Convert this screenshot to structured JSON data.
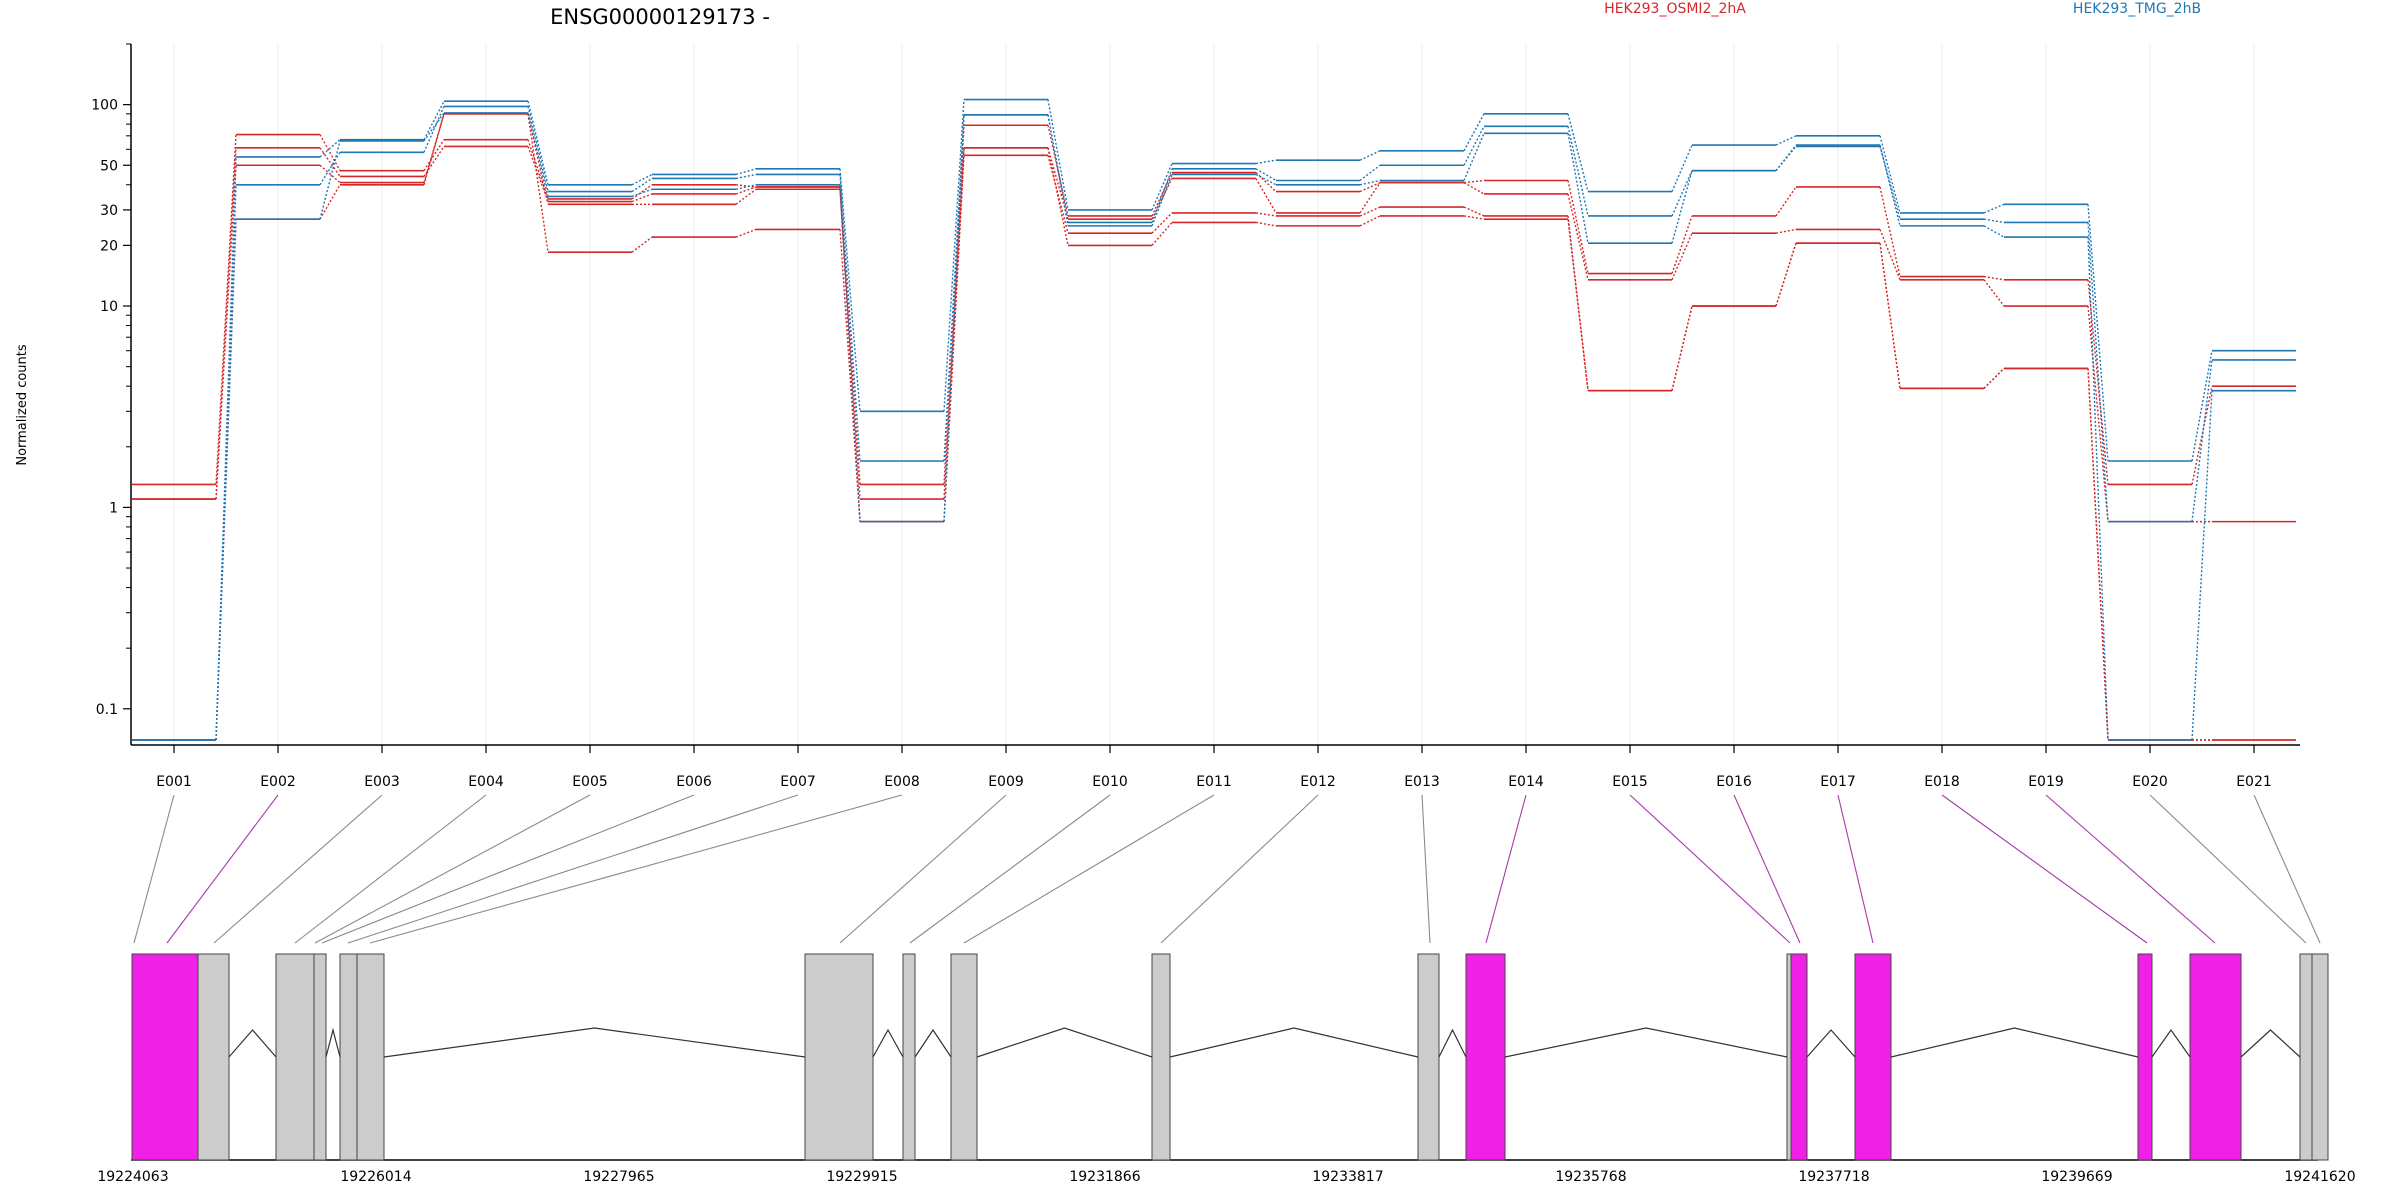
{
  "chart_data": {
    "type": "line",
    "title": "ENSG00000129173 -",
    "ylabel": "Normalized counts",
    "y_scale": "log",
    "ylim": [
      0.07,
      200
    ],
    "y_ticks": [
      0.1,
      1,
      10,
      20,
      30,
      50,
      100
    ],
    "y_tick_labels": [
      "0.1",
      "1",
      "10",
      "20",
      "30",
      "50",
      "100"
    ],
    "grid": "vertical",
    "categories": [
      "E001",
      "E002",
      "E003",
      "E004",
      "E005",
      "E006",
      "E007",
      "E008",
      "E009",
      "E010",
      "E011",
      "E012",
      "E013",
      "E014",
      "E015",
      "E016",
      "E017",
      "E018",
      "E019",
      "E020",
      "E021"
    ],
    "legend": [
      {
        "name": "HEK293_OSMI2_2hA",
        "color": "#d62728"
      },
      {
        "name": "HEK293_TMG_2hB",
        "color": "#1f77b4"
      }
    ],
    "series": [
      {
        "group": "HEK293_OSMI2_2hA",
        "color": "#d62728",
        "values": [
          1.3,
          71,
          47,
          67,
          34,
          40,
          39,
          1.3,
          79,
          28,
          46,
          37,
          41,
          42,
          14.5,
          28,
          39,
          14,
          13.5,
          1.3,
          4
        ]
      },
      {
        "group": "HEK293_OSMI2_2hA",
        "color": "#d62728",
        "values": [
          1.1,
          61,
          44,
          62,
          33,
          36,
          39,
          1.1,
          61,
          27,
          43,
          29,
          41,
          36,
          13.5,
          23,
          24,
          13.5,
          10,
          0.85,
          0.85
        ]
      },
      {
        "group": "HEK293_OSMI2_2hA",
        "color": "#d62728",
        "values": [
          1.1,
          50,
          41,
          90,
          32,
          32,
          38,
          0.85,
          56,
          23,
          29,
          28,
          31,
          28,
          3.8,
          10,
          20.5,
          3.9,
          4.9,
          0.07,
          0.07
        ]
      },
      {
        "group": "HEK293_OSMI2_2hA",
        "color": "#d62728",
        "values": [
          0.07,
          27,
          40,
          90,
          18.5,
          22,
          24,
          0.85,
          61,
          20,
          26,
          25,
          28,
          27,
          3.8,
          10,
          20.5,
          3.9,
          4.9,
          0.07,
          0.07
        ]
      },
      {
        "group": "HEK293_TMG_2hB",
        "color": "#1f77b4",
        "values": [
          0.07,
          55,
          67,
          104,
          40,
          45,
          48,
          3,
          106,
          30,
          51,
          53,
          59,
          90,
          37,
          63,
          70,
          29,
          32,
          1.7,
          6
        ]
      },
      {
        "group": "HEK293_TMG_2hB",
        "color": "#1f77b4",
        "values": [
          0.07,
          40,
          58,
          98,
          37,
          43,
          45,
          1.7,
          89,
          26,
          48,
          42,
          50,
          78,
          28,
          47,
          62,
          27,
          26,
          0.85,
          5.4
        ]
      },
      {
        "group": "HEK293_TMG_2hB",
        "color": "#1f77b4",
        "values": [
          0.07,
          27,
          66,
          91,
          35,
          38,
          40,
          0.85,
          89,
          25,
          45,
          40,
          42,
          72,
          20.5,
          47,
          63,
          25,
          22,
          0.07,
          3.8
        ]
      }
    ],
    "gene_model": {
      "coordinate_labels": [
        "19224063",
        "19226014",
        "19227965",
        "19229915",
        "19231866",
        "19233817",
        "19235768",
        "19237718",
        "19239669",
        "19241620"
      ],
      "highlight_color": "#f020e6",
      "exon_color": "#cccccc"
    }
  }
}
